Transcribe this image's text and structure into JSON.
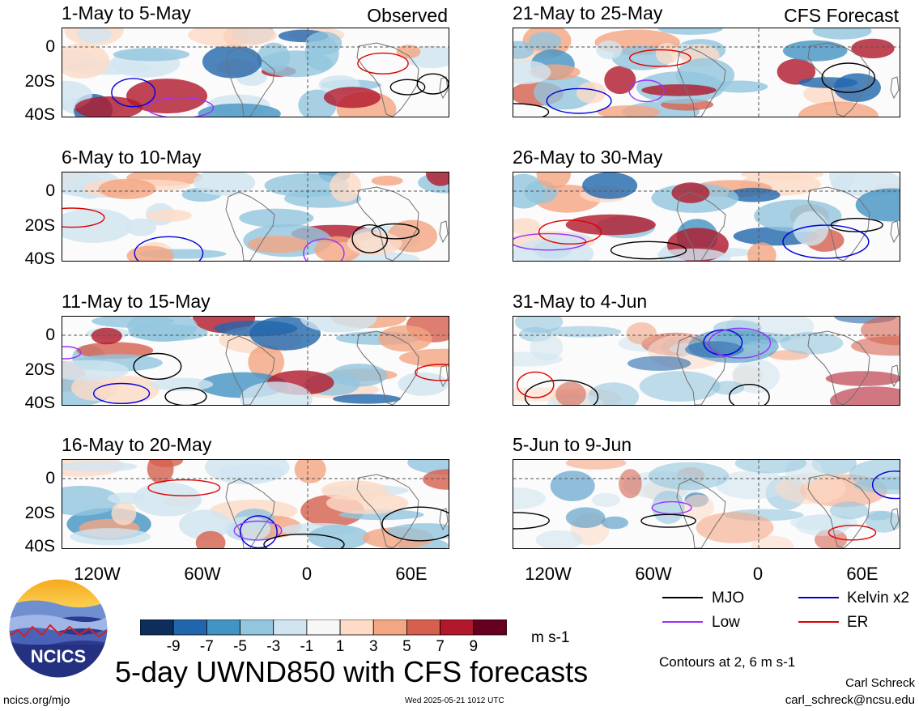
{
  "panels": [
    {
      "title": "1-May to 5-May",
      "corner": "Observed"
    },
    {
      "title": "21-May to 25-May",
      "corner": "CFS Forecast"
    },
    {
      "title": "6-May to 10-May",
      "corner": ""
    },
    {
      "title": "26-May to 30-May",
      "corner": ""
    },
    {
      "title": "11-May to 15-May",
      "corner": ""
    },
    {
      "title": "31-May to 4-Jun",
      "corner": ""
    },
    {
      "title": "16-May to 20-May",
      "corner": ""
    },
    {
      "title": "5-Jun to 9-Jun",
      "corner": ""
    }
  ],
  "lat_labels": [
    "0",
    "20S",
    "40S"
  ],
  "lon_labels": [
    "120W",
    "60W",
    "0",
    "60E"
  ],
  "colorbar": {
    "colors": [
      "#0d2e5b",
      "#2166ac",
      "#4393c3",
      "#92c5de",
      "#d1e5f0",
      "#f7f7f7",
      "#fddbc7",
      "#f4a582",
      "#d6604d",
      "#b2182b",
      "#67001f"
    ],
    "ticks": [
      "-9",
      "-7",
      "-5",
      "-3",
      "-1",
      "1",
      "3",
      "5",
      "7",
      "9"
    ],
    "units": "m s-1"
  },
  "contour_legend": [
    {
      "label": "MJO",
      "color": "#000000"
    },
    {
      "label": "Kelvin x2",
      "color": "#0000dd"
    },
    {
      "label": "Low",
      "color": "#9b30ff"
    },
    {
      "label": "ER",
      "color": "#dd0000"
    }
  ],
  "contour_note": "Contours at 2, 6 m s-1",
  "main_title": "5-day UWND850 with CFS forecasts",
  "logo_text": "NCICS",
  "footer": {
    "left": "ncics.org/mjo",
    "center": "Wed 2025-05-21 1012 UTC",
    "author": "Carl Schreck",
    "email": "carl_schreck@ncsu.edu"
  }
}
